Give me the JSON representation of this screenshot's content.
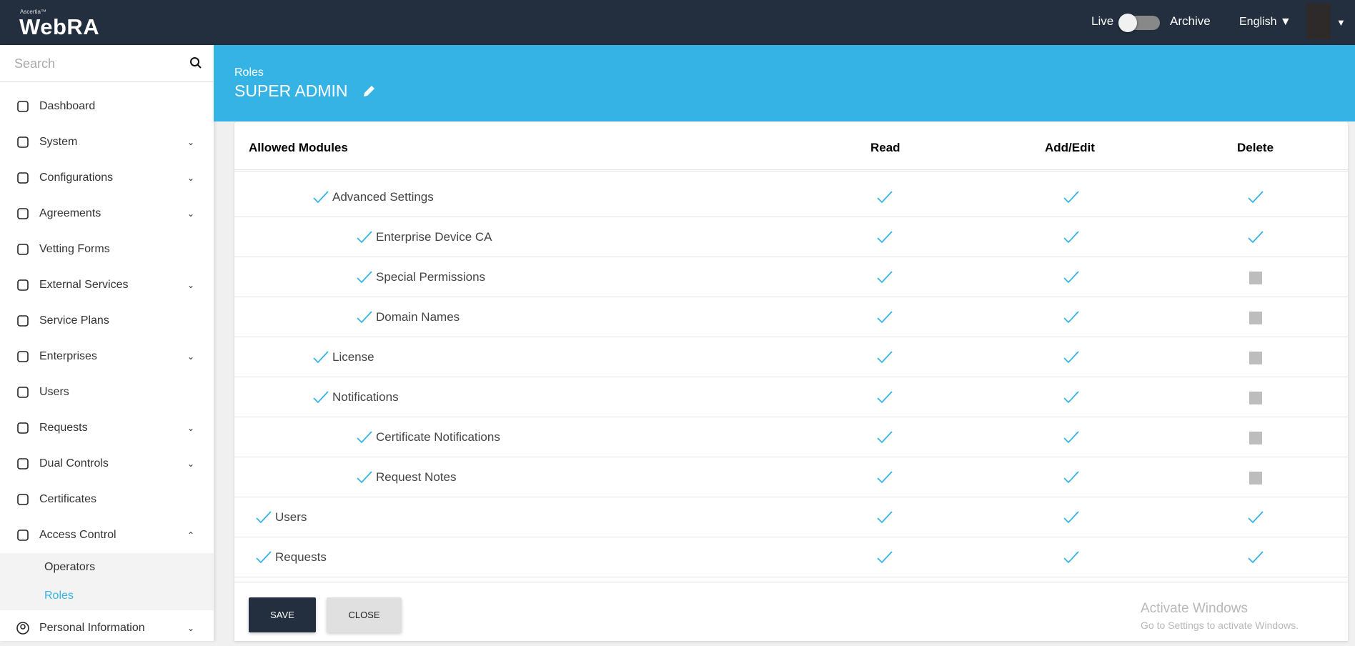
{
  "header": {
    "brand_small": "Ascertia™",
    "brand": "WebRA",
    "live_label": "Live",
    "archive_label": "Archive",
    "live_archive_on": false,
    "language": "English ▼",
    "user_caret": "▼"
  },
  "sidebar": {
    "search_placeholder": "Search",
    "items": [
      {
        "label": "Dashboard",
        "icon": "gauge-icon",
        "chevron": ""
      },
      {
        "label": "System",
        "icon": "server-icon",
        "chevron": "⌄"
      },
      {
        "label": "Configurations",
        "icon": "gear-icon",
        "chevron": "⌄"
      },
      {
        "label": "Agreements",
        "icon": "handshake-icon",
        "chevron": "⌄"
      },
      {
        "label": "Vetting Forms",
        "icon": "document-search-icon",
        "chevron": ""
      },
      {
        "label": "External Services",
        "icon": "link-icon",
        "chevron": "⌄"
      },
      {
        "label": "Service Plans",
        "icon": "plan-icon",
        "chevron": ""
      },
      {
        "label": "Enterprises",
        "icon": "bank-icon",
        "chevron": "⌄"
      },
      {
        "label": "Users",
        "icon": "user-icon",
        "chevron": ""
      },
      {
        "label": "Requests",
        "icon": "request-icon",
        "chevron": "⌄"
      },
      {
        "label": "Dual Controls",
        "icon": "dual-control-icon",
        "chevron": "⌄"
      },
      {
        "label": "Certificates",
        "icon": "certificate-icon",
        "chevron": ""
      },
      {
        "label": "Access Control",
        "icon": "lock-icon",
        "chevron": "⌃"
      }
    ],
    "subitems": [
      {
        "label": "Operators",
        "active": false
      },
      {
        "label": "Roles",
        "active": true
      }
    ],
    "last_item": {
      "label": "Personal Information",
      "icon": "user-circle-icon",
      "chevron": "⌄"
    }
  },
  "page": {
    "breadcrumb": "Roles",
    "title": "SUPER ADMIN"
  },
  "table": {
    "headers": {
      "module": "Allowed Modules",
      "read": "Read",
      "add_edit": "Add/Edit",
      "delete": "Delete"
    },
    "rows": [
      {
        "label": "Advanced Settings",
        "level": 1,
        "read": true,
        "add_edit": true,
        "delete": true
      },
      {
        "label": "Enterprise Device CA",
        "level": 2,
        "read": true,
        "add_edit": true,
        "delete": true
      },
      {
        "label": "Special Permissions",
        "level": 2,
        "read": true,
        "add_edit": true,
        "delete": false
      },
      {
        "label": "Domain Names",
        "level": 2,
        "read": true,
        "add_edit": true,
        "delete": false
      },
      {
        "label": "License",
        "level": 1,
        "read": true,
        "add_edit": true,
        "delete": false
      },
      {
        "label": "Notifications",
        "level": 1,
        "read": true,
        "add_edit": true,
        "delete": false
      },
      {
        "label": "Certificate Notifications",
        "level": 2,
        "read": true,
        "add_edit": true,
        "delete": false
      },
      {
        "label": "Request Notes",
        "level": 2,
        "read": true,
        "add_edit": true,
        "delete": false
      },
      {
        "label": "Users",
        "level": 0,
        "read": true,
        "add_edit": true,
        "delete": true
      },
      {
        "label": "Requests",
        "level": 0,
        "read": true,
        "add_edit": true,
        "delete": true
      }
    ]
  },
  "buttons": {
    "save": "SAVE",
    "close": "CLOSE"
  },
  "watermark": {
    "line1": "Activate Windows",
    "line2": "Go to Settings to activate Windows."
  },
  "colors": {
    "header": "#232f3f",
    "accent": "#35b3e5",
    "check": "#35b3e5",
    "disabled": "#bdbdbd"
  }
}
